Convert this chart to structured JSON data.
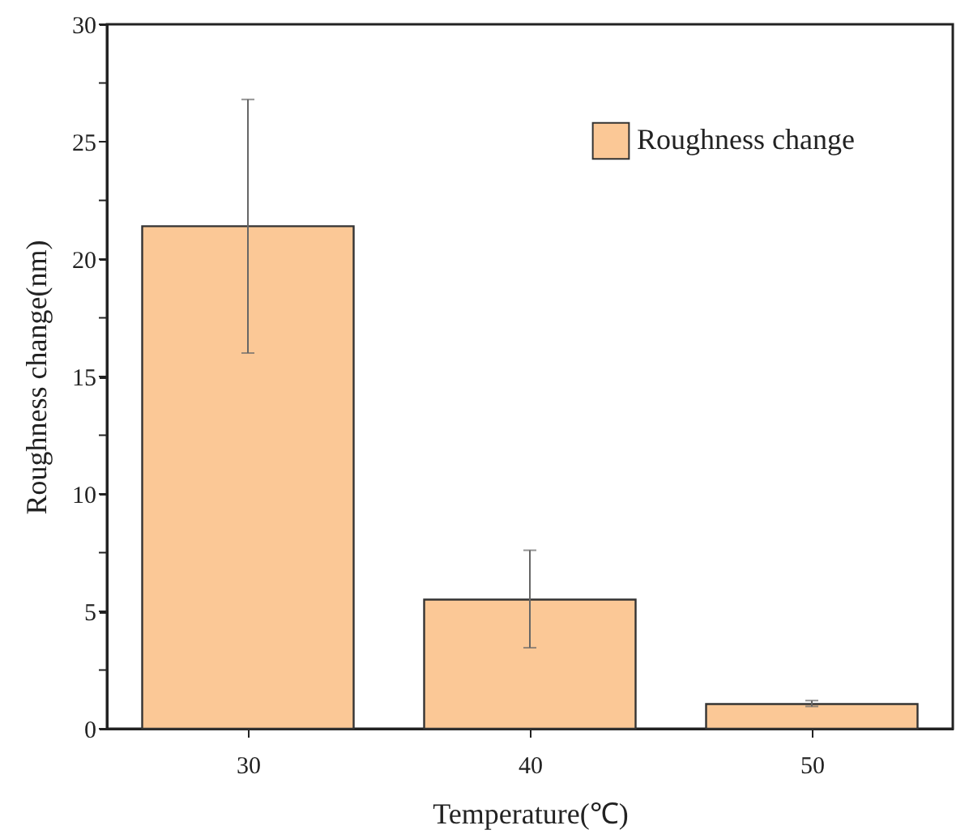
{
  "chart_data": {
    "type": "bar",
    "xlabel": "Temperature(℃)",
    "ylabel": "Roughness change(nm)",
    "categories": [
      "30",
      "40",
      "50"
    ],
    "series": [
      {
        "name": "Roughness change",
        "color": "#fbc896",
        "values": [
          21.4,
          5.5,
          1.05
        ],
        "errors": [
          [
            16.0,
            26.8
          ],
          [
            3.45,
            7.6
          ],
          [
            0.95,
            1.2
          ]
        ]
      }
    ],
    "ylim": [
      0,
      30
    ],
    "yticks": [
      0,
      {
        "value": 2.5,
        "label": null
      },
      5,
      {
        "value": 7.5,
        "label": null
      },
      10,
      {
        "value": 12.5,
        "label": null
      },
      15,
      {
        "value": 17.5,
        "label": null
      },
      20,
      {
        "value": 22.5,
        "label": null
      },
      25,
      {
        "value": 27.5,
        "label": null
      },
      30
    ],
    "grid": false,
    "legend": "top right"
  }
}
